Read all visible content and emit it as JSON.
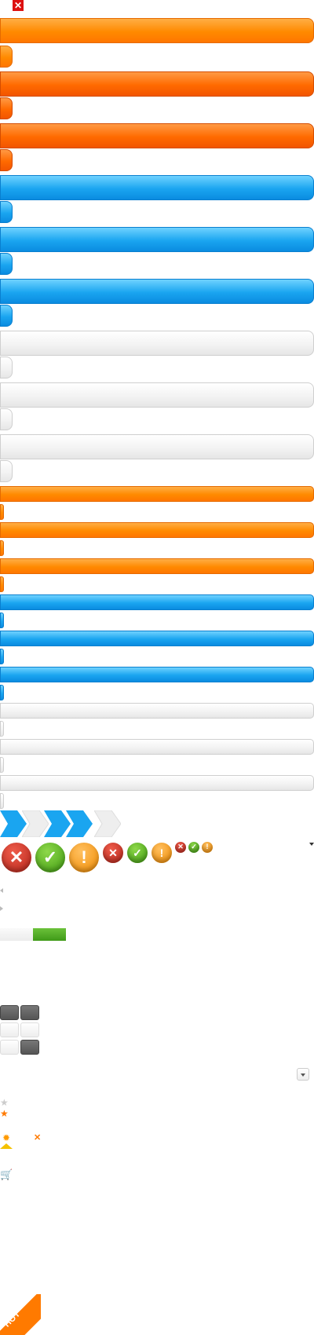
{
  "icons": {
    "close": "✕",
    "dropdown_arrow": "▾",
    "bubble_error": "✕",
    "bubble_ok": "✓",
    "bubble_warn": "!",
    "star": "★",
    "sun": "✹",
    "remove": "✕",
    "cart": "🛒"
  },
  "colors": {
    "orange": "#ff8a00",
    "red_orange": "#f25500",
    "blue": "#1aa5f0",
    "gray": "#f3f3f3",
    "green": "#3f9a18"
  },
  "progress": {
    "value": 0.5
  },
  "badge": {
    "hot": "HOT"
  }
}
